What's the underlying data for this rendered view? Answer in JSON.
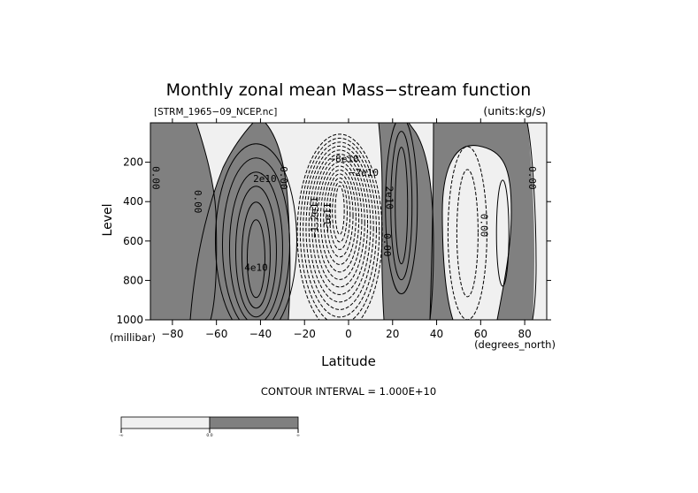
{
  "chart_data": {
    "type": "contour",
    "title": "Monthly zonal mean Mass−stream function",
    "file_label": "[STRM_1965−09_NCEP.nc]",
    "units_label": "(units:kg/s)",
    "xlabel": "Latitude",
    "x_unit_label": "(degrees_north)",
    "ylabel": "Level",
    "y_unit_label": "(millibar)",
    "xlim": [
      -90,
      90
    ],
    "ylim": [
      1000,
      0
    ],
    "x_ticks": [
      -80,
      -60,
      -40,
      -20,
      0,
      20,
      40,
      60,
      80
    ],
    "x_tick_labels": [
      "−80",
      "−60",
      "−40",
      "−20",
      "0",
      "20",
      "40",
      "60",
      "80"
    ],
    "y_ticks": [
      200,
      400,
      600,
      800,
      1000
    ],
    "y_tick_labels": [
      "200",
      "400",
      "600",
      "800",
      "1000"
    ],
    "contour_interval_label": "CONTOUR INTERVAL = 1.000E+10",
    "contour_interval": 10000000000.0,
    "shading": {
      "negative_color": "#f0f0f0",
      "positive_color": "#808080",
      "threshold": 0
    },
    "colorbar_labels": [
      "-∞",
      "0.0",
      "∞"
    ],
    "negative_contours_dashed": true,
    "cells": [
      {
        "lat": -42,
        "level": 650,
        "peak": 45000000000.0,
        "sign": "positive"
      },
      {
        "lat": -5,
        "level": 450,
        "peak": -160000000000.0,
        "sign": "negative"
      },
      {
        "lat": 23,
        "level": 380,
        "peak": 30000000000.0,
        "sign": "positive"
      },
      {
        "lat": 52,
        "level": 520,
        "peak": -20000000000.0,
        "sign": "negative"
      },
      {
        "lat": 70,
        "level": 520,
        "peak": 10000000000.0,
        "sign": "positive"
      }
    ],
    "contour_labels": [
      {
        "text": "0.00",
        "lat": -89,
        "level": 280
      },
      {
        "text": "2e10",
        "lat": -38,
        "level": 300
      },
      {
        "text": "0.00",
        "lat": -70,
        "level": 400
      },
      {
        "text": "4e10",
        "lat": -42,
        "level": 750
      },
      {
        "text": "0.00",
        "lat": -31,
        "level": 280
      },
      {
        "text": "−1.2e11",
        "lat": -14,
        "level": 480
      },
      {
        "text": "−1e11",
        "lat": -8,
        "level": 480
      },
      {
        "text": "−8e10",
        "lat": -2,
        "level": 200
      },
      {
        "text": "−2e10",
        "lat": 7,
        "level": 270
      },
      {
        "text": "2e10",
        "lat": 17,
        "level": 380
      },
      {
        "text": "0.00",
        "lat": 16,
        "level": 620
      },
      {
        "text": "0.00",
        "lat": 60,
        "level": 520
      },
      {
        "text": "0.00",
        "lat": 82,
        "level": 280
      }
    ]
  }
}
